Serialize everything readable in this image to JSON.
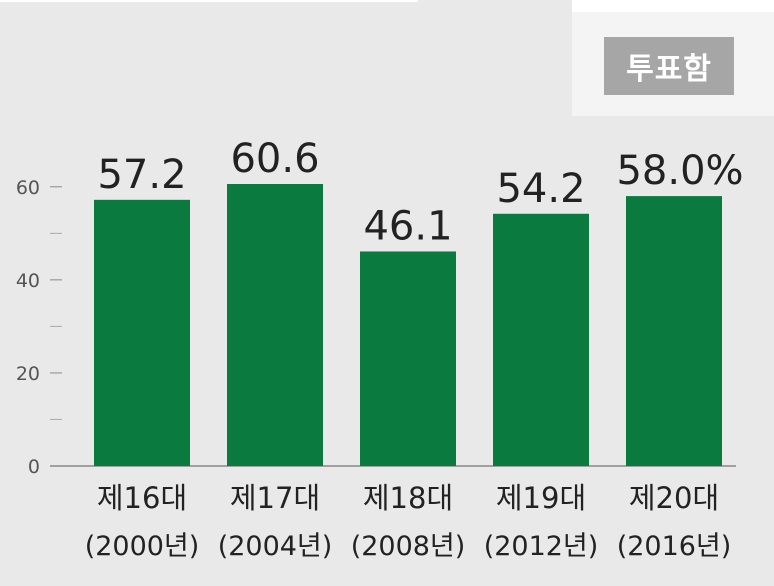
{
  "ballot_box_label": "투표함",
  "colors": {
    "bar": "#0b7a3e",
    "background": "#e9e9e9",
    "axis": "#888888",
    "text": "#222222"
  },
  "chart_data": {
    "type": "bar",
    "categories": [
      [
        "제16대",
        "(2000년)"
      ],
      [
        "제17대",
        "(2004년)"
      ],
      [
        "제18대",
        "(2008년)"
      ],
      [
        "제19대",
        "(2012년)"
      ],
      [
        "제20대",
        "(2016년)"
      ]
    ],
    "values": [
      57.2,
      60.6,
      46.1,
      54.2,
      58.0
    ],
    "value_labels": [
      "57.2",
      "60.6",
      "46.1",
      "54.2",
      "58.0%"
    ],
    "ylim": [
      0,
      60.6
    ],
    "yticks": [
      0,
      20,
      40,
      60
    ],
    "minor_yticks": [
      10,
      30,
      50
    ],
    "grid": false
  }
}
